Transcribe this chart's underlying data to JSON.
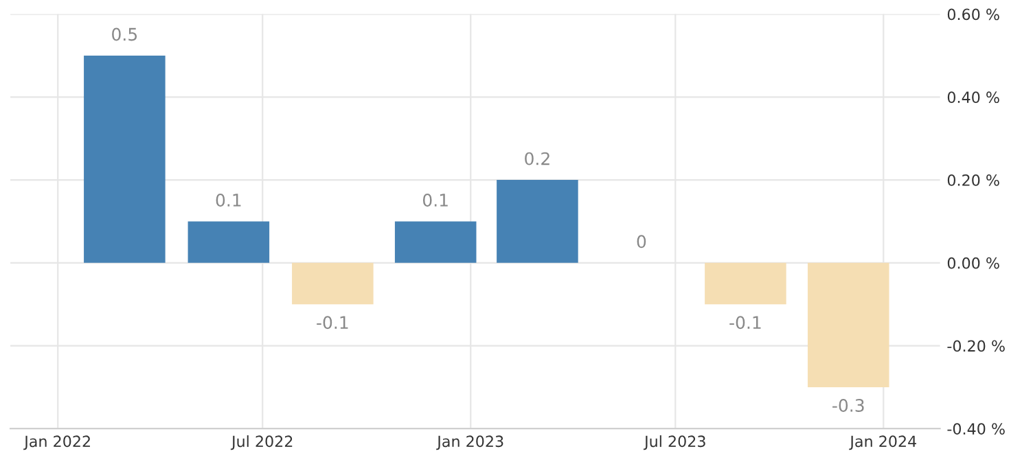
{
  "chart_data": {
    "type": "bar",
    "x": [
      "2022-03",
      "2022-06",
      "2022-09",
      "2022-12",
      "2023-03",
      "2023-06",
      "2023-09",
      "2023-12"
    ],
    "values": [
      0.5,
      0.1,
      -0.1,
      0.1,
      0.2,
      0,
      -0.1,
      -0.3
    ],
    "colors": [
      "#4682b4",
      "#4682b4",
      "#f5deb3",
      "#4682b4",
      "#4682b4",
      "#4682b4",
      "#f5deb3",
      "#f5deb3"
    ],
    "data_labels": true,
    "xlim": [
      "2021-11-20",
      "2024-02-20"
    ],
    "xticks": [
      {
        "value": "2022-01",
        "label": "Jan 2022"
      },
      {
        "value": "2022-07",
        "label": "Jul 2022"
      },
      {
        "value": "2023-01",
        "label": "Jan 2023"
      },
      {
        "value": "2023-07",
        "label": "Jul 2023"
      },
      {
        "value": "2024-01",
        "label": "Jan 2024"
      }
    ],
    "ylim": [
      -0.4,
      0.6
    ],
    "yticks": [
      {
        "value": -0.4,
        "label": "-0.40 %"
      },
      {
        "value": -0.2,
        "label": "-0.20 %"
      },
      {
        "value": 0,
        "label": "0.00 %"
      },
      {
        "value": 0.2,
        "label": "0.20 %"
      },
      {
        "value": 0.4,
        "label": "0.40 %"
      },
      {
        "value": 0.6,
        "label": "0.60 %"
      }
    ],
    "grid": true
  }
}
